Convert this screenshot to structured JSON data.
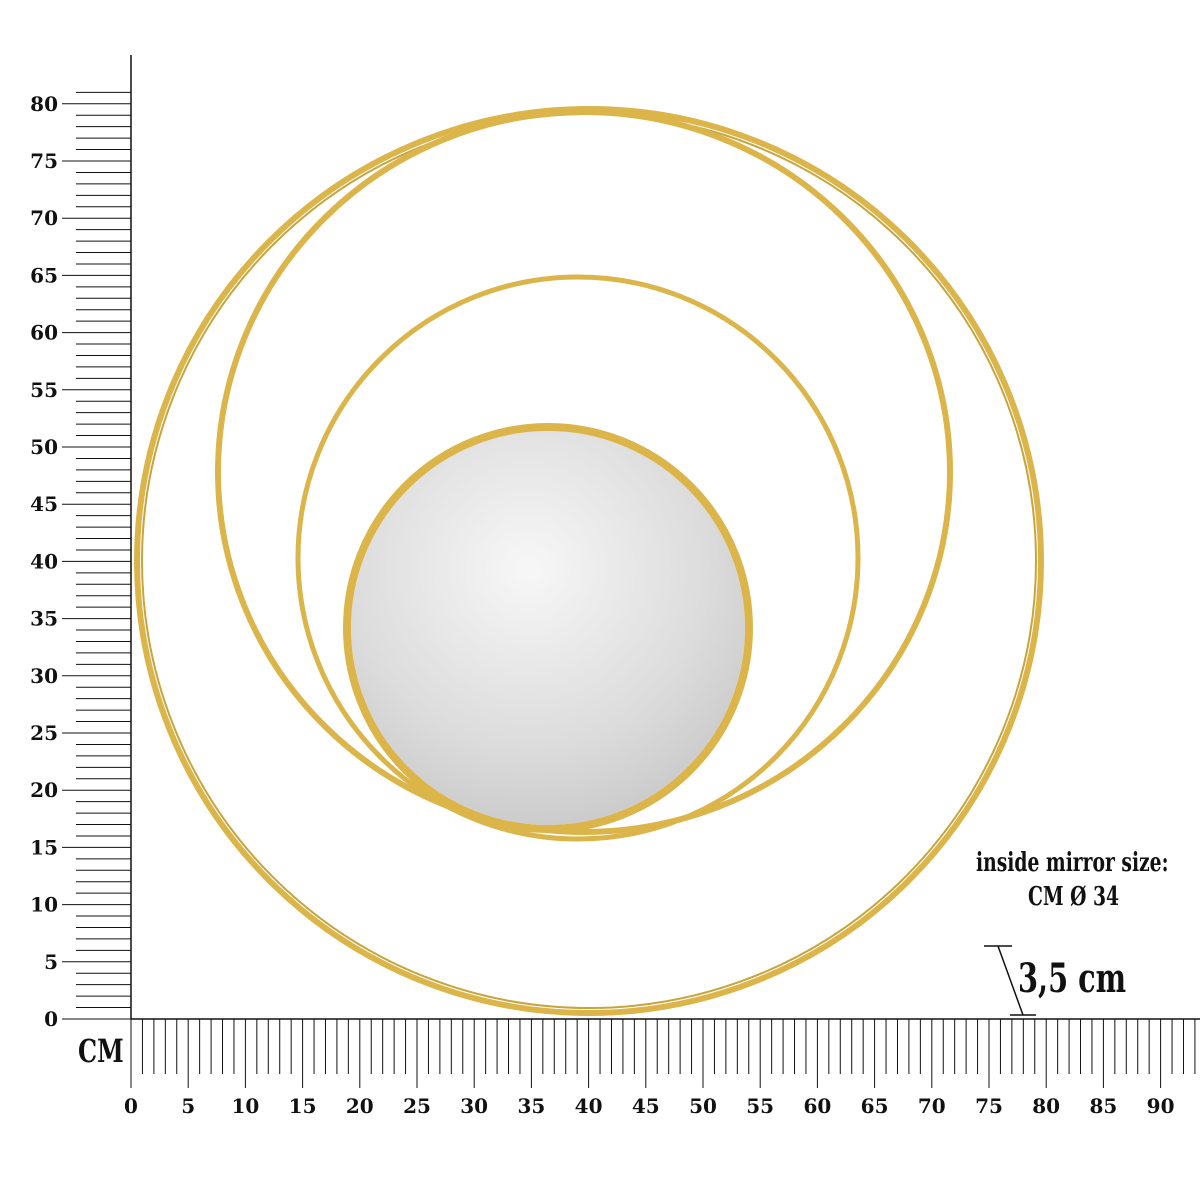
{
  "unit_label": "CM",
  "vertical_ruler": {
    "min": 0,
    "max": 81,
    "label_step": 5,
    "labels": [
      "0",
      "5",
      "10",
      "15",
      "20",
      "25",
      "30",
      "35",
      "40",
      "45",
      "50",
      "55",
      "60",
      "65",
      "70",
      "75",
      "80"
    ]
  },
  "horizontal_ruler": {
    "min": 0,
    "max": 93,
    "label_step": 5,
    "labels": [
      "0",
      "5",
      "10",
      "15",
      "20",
      "25",
      "30",
      "35",
      "40",
      "45",
      "50",
      "55",
      "60",
      "65",
      "70",
      "75",
      "80",
      "85",
      "90"
    ]
  },
  "note": {
    "line1": "inside mirror size:",
    "line2": "CM Ø 34"
  },
  "thickness_label": "3,5 cm",
  "colors": {
    "gold": "#dcb54a",
    "gold_dark": "#b8922a",
    "mirror": "#d8d8d8",
    "ink": "#111111"
  }
}
